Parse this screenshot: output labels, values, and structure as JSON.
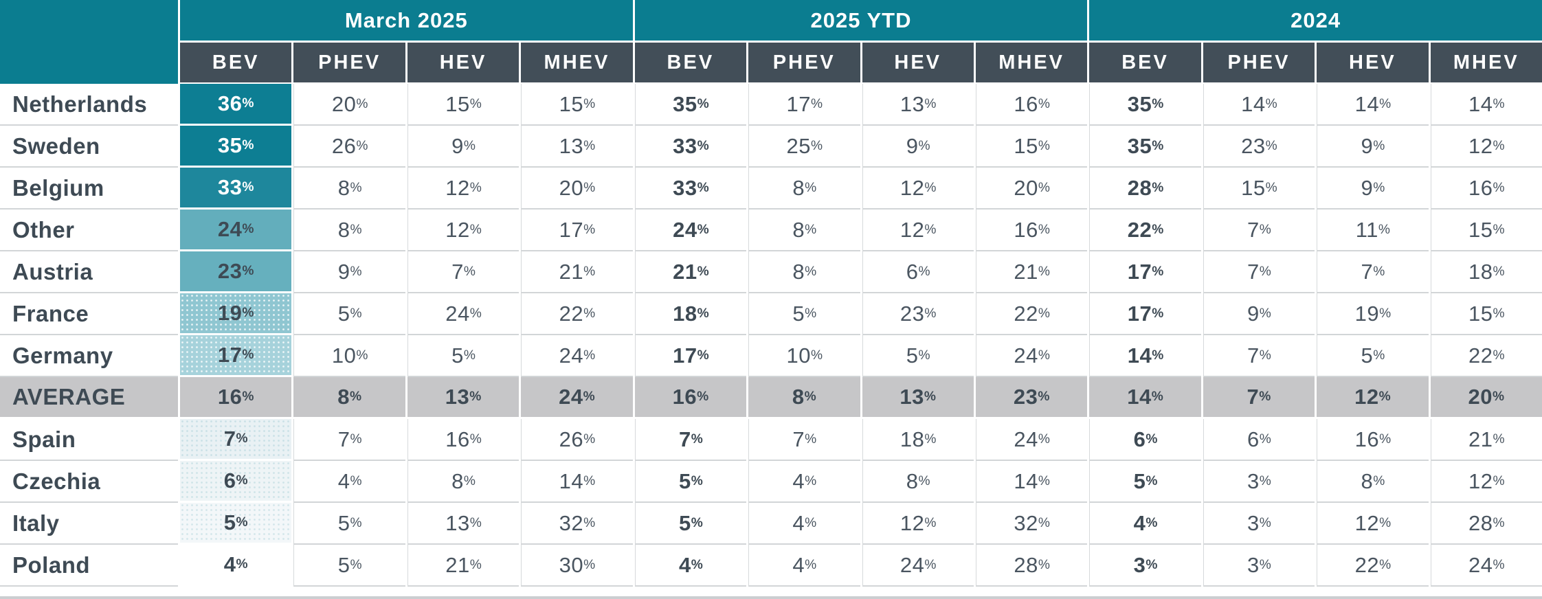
{
  "colors": {
    "teal_header": "#0b7d90",
    "dark_header": "#424e58",
    "text_dark": "#3e4a54",
    "text_regular": "#4a5560",
    "average_row_bg": "#c6c6c8",
    "row_border": "#d2d5d7"
  },
  "chart_data": {
    "type": "heatmap-table",
    "unit": "%",
    "column_groups": [
      {
        "id": "march_2025",
        "label": "March 2025"
      },
      {
        "id": "ytd_2025",
        "label": "2025 YTD"
      },
      {
        "id": "y2024",
        "label": "2024"
      }
    ],
    "powertrains": [
      "BEV",
      "PHEV",
      "HEV",
      "MHEV"
    ],
    "rows": [
      {
        "country": "Netherlands",
        "is_average": false,
        "values": {
          "march_2025": [
            "36%",
            "20%",
            "15%",
            "15%"
          ],
          "ytd_2025": [
            "35%",
            "17%",
            "13%",
            "16%"
          ],
          "y2024": [
            "35%",
            "14%",
            "14%",
            "14%"
          ]
        },
        "bev_heat": {
          "bg": "#0d7e93",
          "text": "#ffffff",
          "pattern": null
        }
      },
      {
        "country": "Sweden",
        "is_average": false,
        "values": {
          "march_2025": [
            "35%",
            "26%",
            "9%",
            "13%"
          ],
          "ytd_2025": [
            "33%",
            "25%",
            "9%",
            "15%"
          ],
          "y2024": [
            "35%",
            "23%",
            "9%",
            "12%"
          ]
        },
        "bev_heat": {
          "bg": "#0d7e93",
          "text": "#ffffff",
          "pattern": null
        }
      },
      {
        "country": "Belgium",
        "is_average": false,
        "values": {
          "march_2025": [
            "33%",
            "8%",
            "12%",
            "20%"
          ],
          "ytd_2025": [
            "33%",
            "8%",
            "12%",
            "20%"
          ],
          "y2024": [
            "28%",
            "15%",
            "9%",
            "16%"
          ]
        },
        "bev_heat": {
          "bg": "#1e879c",
          "text": "#ffffff",
          "pattern": null
        }
      },
      {
        "country": "Other",
        "is_average": false,
        "values": {
          "march_2025": [
            "24%",
            "8%",
            "12%",
            "17%"
          ],
          "ytd_2025": [
            "24%",
            "8%",
            "12%",
            "16%"
          ],
          "y2024": [
            "22%",
            "7%",
            "11%",
            "15%"
          ]
        },
        "bev_heat": {
          "bg": "#63aebc",
          "text": "#3e4a54",
          "pattern": null
        }
      },
      {
        "country": "Austria",
        "is_average": false,
        "values": {
          "march_2025": [
            "23%",
            "9%",
            "7%",
            "21%"
          ],
          "ytd_2025": [
            "21%",
            "8%",
            "6%",
            "21%"
          ],
          "y2024": [
            "17%",
            "7%",
            "7%",
            "18%"
          ]
        },
        "bev_heat": {
          "bg": "#66b0be",
          "text": "#3e4a54",
          "pattern": null
        }
      },
      {
        "country": "France",
        "is_average": false,
        "values": {
          "march_2025": [
            "19%",
            "5%",
            "24%",
            "22%"
          ],
          "ytd_2025": [
            "18%",
            "5%",
            "23%",
            "22%"
          ],
          "y2024": [
            "17%",
            "9%",
            "19%",
            "15%"
          ]
        },
        "bev_heat": {
          "bg": "#8fc6d1",
          "text": "#3e4a54",
          "pattern": "white-dots"
        }
      },
      {
        "country": "Germany",
        "is_average": false,
        "values": {
          "march_2025": [
            "17%",
            "10%",
            "5%",
            "24%"
          ],
          "ytd_2025": [
            "17%",
            "10%",
            "5%",
            "24%"
          ],
          "y2024": [
            "14%",
            "7%",
            "5%",
            "22%"
          ]
        },
        "bev_heat": {
          "bg": "#a6d2db",
          "text": "#3e4a54",
          "pattern": "white-dots"
        }
      },
      {
        "country": "AVERAGE",
        "is_average": true,
        "values": {
          "march_2025": [
            "16%",
            "8%",
            "13%",
            "24%"
          ],
          "ytd_2025": [
            "16%",
            "8%",
            "13%",
            "23%"
          ],
          "y2024": [
            "14%",
            "7%",
            "12%",
            "20%"
          ]
        },
        "bev_heat": {
          "bg": "#c6c6c8",
          "text": "#3e4a54",
          "pattern": null
        }
      },
      {
        "country": "Spain",
        "is_average": false,
        "values": {
          "march_2025": [
            "7%",
            "7%",
            "16%",
            "26%"
          ],
          "ytd_2025": [
            "7%",
            "7%",
            "18%",
            "24%"
          ],
          "y2024": [
            "6%",
            "6%",
            "16%",
            "21%"
          ]
        },
        "bev_heat": {
          "bg": "#e9f1f4",
          "text": "#3e4a54",
          "pattern": "teal-dots"
        }
      },
      {
        "country": "Czechia",
        "is_average": false,
        "values": {
          "march_2025": [
            "6%",
            "4%",
            "8%",
            "14%"
          ],
          "ytd_2025": [
            "5%",
            "4%",
            "8%",
            "14%"
          ],
          "y2024": [
            "5%",
            "3%",
            "8%",
            "12%"
          ]
        },
        "bev_heat": {
          "bg": "#eef4f6",
          "text": "#3e4a54",
          "pattern": "teal-dots"
        }
      },
      {
        "country": "Italy",
        "is_average": false,
        "values": {
          "march_2025": [
            "5%",
            "5%",
            "13%",
            "32%"
          ],
          "ytd_2025": [
            "5%",
            "4%",
            "12%",
            "32%"
          ],
          "y2024": [
            "4%",
            "3%",
            "12%",
            "28%"
          ]
        },
        "bev_heat": {
          "bg": "#f3f7f9",
          "text": "#3e4a54",
          "pattern": "teal-dots"
        }
      },
      {
        "country": "Poland",
        "is_average": false,
        "values": {
          "march_2025": [
            "4%",
            "5%",
            "21%",
            "30%"
          ],
          "ytd_2025": [
            "4%",
            "4%",
            "24%",
            "28%"
          ],
          "y2024": [
            "3%",
            "3%",
            "22%",
            "24%"
          ]
        },
        "bev_heat": {
          "bg": "#ffffff",
          "text": "#3e4a54",
          "pattern": null
        }
      }
    ]
  }
}
